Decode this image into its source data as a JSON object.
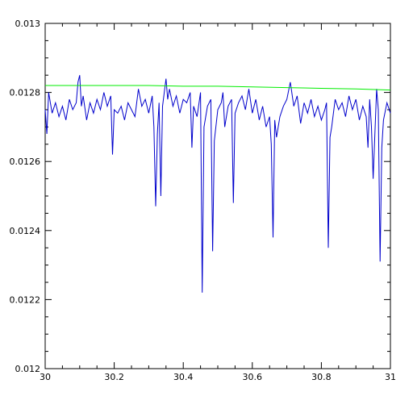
{
  "chart_data": {
    "type": "line",
    "title": "",
    "xlabel": "",
    "ylabel": "",
    "xlim": [
      30,
      31
    ],
    "ylim": [
      0.012,
      0.013
    ],
    "grid": false,
    "x_ticks": [
      30,
      30.2,
      30.4,
      30.6,
      30.8,
      31
    ],
    "x_tick_labels": [
      "30",
      "30.2",
      "30.4",
      "30.6",
      "30.8",
      "31"
    ],
    "y_ticks": [
      0.012,
      0.0122,
      0.0124,
      0.0126,
      0.0128,
      0.013
    ],
    "y_tick_labels": [
      "0.012",
      "0.0122",
      "0.0124",
      "0.0126",
      "0.0128",
      "0.013"
    ],
    "series": [
      {
        "color": "#0000cc",
        "x": [
          30.0,
          30.005,
          30.01,
          30.02,
          30.03,
          30.04,
          30.05,
          30.06,
          30.07,
          30.08,
          30.09,
          30.095,
          30.1,
          30.105,
          30.11,
          30.12,
          30.13,
          30.14,
          30.15,
          30.16,
          30.17,
          30.18,
          30.19,
          30.195,
          30.2,
          30.21,
          30.22,
          30.23,
          30.24,
          30.25,
          30.26,
          30.27,
          30.28,
          30.29,
          30.3,
          30.31,
          30.315,
          30.32,
          30.325,
          30.33,
          30.335,
          30.34,
          30.35,
          30.355,
          30.36,
          30.37,
          30.38,
          30.39,
          30.4,
          30.41,
          30.42,
          30.425,
          30.43,
          30.44,
          30.45,
          30.455,
          30.46,
          30.47,
          30.48,
          30.485,
          30.49,
          30.5,
          30.51,
          30.515,
          30.52,
          30.53,
          30.54,
          30.545,
          30.55,
          30.56,
          30.57,
          30.58,
          30.59,
          30.6,
          30.61,
          30.62,
          30.63,
          30.64,
          30.65,
          30.655,
          30.66,
          30.665,
          30.67,
          30.68,
          30.69,
          30.7,
          30.71,
          30.72,
          30.73,
          30.74,
          30.75,
          30.76,
          30.77,
          30.78,
          30.79,
          30.8,
          30.81,
          30.815,
          30.82,
          30.825,
          30.83,
          30.84,
          30.85,
          30.86,
          30.87,
          30.88,
          30.89,
          30.9,
          30.91,
          30.92,
          30.93,
          30.935,
          30.94,
          30.945,
          30.95,
          30.96,
          30.965,
          30.97,
          30.975,
          30.98,
          30.99,
          31.0
        ],
        "y": [
          0.01275,
          0.01268,
          0.0128,
          0.01274,
          0.01277,
          0.01273,
          0.01276,
          0.01272,
          0.01278,
          0.01275,
          0.01277,
          0.01283,
          0.01285,
          0.01276,
          0.01279,
          0.01272,
          0.01277,
          0.01274,
          0.01278,
          0.01275,
          0.0128,
          0.01276,
          0.01279,
          0.01262,
          0.01275,
          0.01274,
          0.01276,
          0.01272,
          0.01277,
          0.01275,
          0.01273,
          0.01281,
          0.01276,
          0.01278,
          0.01274,
          0.01279,
          0.0127,
          0.01247,
          0.01268,
          0.01277,
          0.0125,
          0.01276,
          0.01284,
          0.01278,
          0.01281,
          0.01276,
          0.01279,
          0.01274,
          0.01278,
          0.01277,
          0.0128,
          0.01264,
          0.01276,
          0.01273,
          0.0128,
          0.01222,
          0.0127,
          0.01276,
          0.01278,
          0.01234,
          0.01266,
          0.01275,
          0.01277,
          0.0128,
          0.0127,
          0.01276,
          0.01278,
          0.01248,
          0.01274,
          0.01277,
          0.01279,
          0.01275,
          0.01281,
          0.01274,
          0.01278,
          0.01272,
          0.01276,
          0.0127,
          0.01273,
          0.01265,
          0.01238,
          0.01272,
          0.01267,
          0.01273,
          0.01276,
          0.01278,
          0.01283,
          0.01276,
          0.01279,
          0.01271,
          0.01277,
          0.01274,
          0.01278,
          0.01273,
          0.01276,
          0.01272,
          0.01275,
          0.01277,
          0.01235,
          0.01267,
          0.0127,
          0.01278,
          0.01275,
          0.01277,
          0.01273,
          0.01279,
          0.01275,
          0.01278,
          0.01272,
          0.01276,
          0.01273,
          0.01264,
          0.01278,
          0.0127,
          0.01255,
          0.01281,
          0.01275,
          0.01231,
          0.01264,
          0.01272,
          0.01277,
          0.01274
        ]
      },
      {
        "color": "#00ee00",
        "x": [
          30.0,
          30.1,
          30.2,
          30.3,
          30.4,
          30.5,
          30.6,
          30.7,
          30.8,
          30.9,
          31.0
        ],
        "y": [
          0.01282,
          0.01282,
          0.01282,
          0.01282,
          0.012818,
          0.012818,
          0.012816,
          0.012814,
          0.012812,
          0.01281,
          0.012807
        ]
      }
    ]
  }
}
